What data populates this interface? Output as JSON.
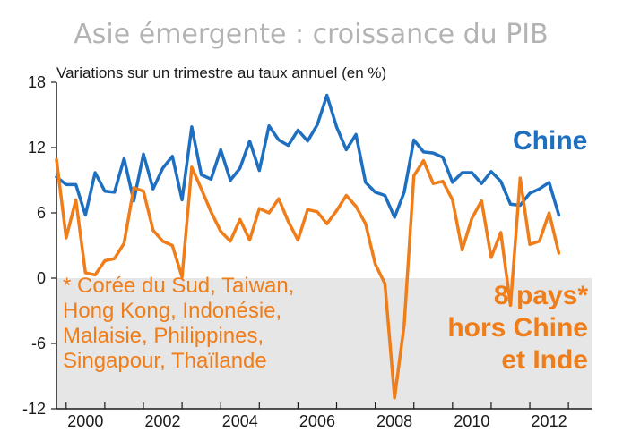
{
  "chart_data": {
    "type": "line",
    "title": "Asie émergente : croissance du PIB",
    "subtitle": "Variations sur un trimestre au taux annuel (en %)",
    "ylim": [
      -12,
      18
    ],
    "yticks": [
      18,
      12,
      6,
      0,
      -6,
      -12
    ],
    "xlim": [
      1999.75,
      2013.6
    ],
    "xticks": [
      {
        "value": 2000,
        "label": "2000"
      },
      {
        "value": 2002,
        "label": "2002"
      },
      {
        "value": 2004,
        "label": "2004"
      },
      {
        "value": 2006,
        "label": "2006"
      },
      {
        "value": 2008,
        "label": "2008"
      },
      {
        "value": 2010,
        "label": "2010"
      },
      {
        "value": 2012,
        "label": "2012"
      }
    ],
    "negative_region_shaded": true,
    "colors": {
      "china": "#1f6fc1",
      "others": "#ef7d1a",
      "shade": "#e6e6e6",
      "axis": "#1a1a1a",
      "title": "#b3b3b3"
    },
    "series": [
      {
        "name": "Chine",
        "color": "#1f6fc1",
        "x": [
          1999.75,
          2000.0,
          2000.25,
          2000.5,
          2000.75,
          2001.0,
          2001.25,
          2001.5,
          2001.75,
          2002.0,
          2002.25,
          2002.5,
          2002.75,
          2003.0,
          2003.25,
          2003.5,
          2003.75,
          2004.0,
          2004.25,
          2004.5,
          2004.75,
          2005.0,
          2005.25,
          2005.5,
          2005.75,
          2006.0,
          2006.25,
          2006.5,
          2006.75,
          2007.0,
          2007.25,
          2007.5,
          2007.75,
          2008.0,
          2008.25,
          2008.5,
          2008.75,
          2009.0,
          2009.25,
          2009.5,
          2009.75,
          2010.0,
          2010.25,
          2010.5,
          2010.75,
          2011.0,
          2011.25,
          2011.5,
          2011.75,
          2012.0,
          2012.25,
          2012.5,
          2012.75
        ],
        "values": [
          9.3,
          8.6,
          8.6,
          5.8,
          9.7,
          8.0,
          7.9,
          11.0,
          7.1,
          11.4,
          8.2,
          10.1,
          11.2,
          7.2,
          13.9,
          9.5,
          9.1,
          11.8,
          9.0,
          10.1,
          12.6,
          9.9,
          14.0,
          12.7,
          12.2,
          13.6,
          12.6,
          14.1,
          16.8,
          13.9,
          11.8,
          13.2,
          8.8,
          7.9,
          7.6,
          5.6,
          7.9,
          12.7,
          11.6,
          11.5,
          11.1,
          8.8,
          9.7,
          9.7,
          8.7,
          9.8,
          8.9,
          6.8,
          6.7,
          7.8,
          8.2,
          8.8,
          5.8
        ]
      },
      {
        "name": "8 pays* hors Chine et Inde",
        "color": "#ef7d1a",
        "x": [
          1999.75,
          2000.0,
          2000.25,
          2000.5,
          2000.75,
          2001.0,
          2001.25,
          2001.5,
          2001.75,
          2002.0,
          2002.25,
          2002.5,
          2002.75,
          2003.0,
          2003.25,
          2003.5,
          2003.75,
          2004.0,
          2004.25,
          2004.5,
          2004.75,
          2005.0,
          2005.25,
          2005.5,
          2005.75,
          2006.0,
          2006.25,
          2006.5,
          2006.75,
          2007.0,
          2007.25,
          2007.5,
          2007.75,
          2008.0,
          2008.25,
          2008.5,
          2008.75,
          2009.0,
          2009.25,
          2009.5,
          2009.75,
          2010.0,
          2010.25,
          2010.5,
          2010.75,
          2011.0,
          2011.25,
          2011.5,
          2011.75,
          2012.0,
          2012.25,
          2012.5,
          2012.75
        ],
        "values": [
          10.9,
          3.7,
          7.2,
          0.5,
          0.3,
          1.6,
          1.8,
          3.2,
          8.3,
          8.0,
          4.4,
          3.4,
          3.0,
          0.1,
          10.2,
          8.2,
          6.1,
          4.3,
          3.4,
          5.4,
          3.5,
          6.4,
          6.0,
          7.3,
          5.2,
          3.5,
          6.3,
          6.1,
          5.0,
          6.2,
          7.6,
          6.6,
          5.0,
          1.3,
          -0.5,
          -11.0,
          -4.3,
          9.4,
          10.8,
          8.7,
          8.9,
          7.2,
          2.6,
          5.5,
          7.1,
          1.9,
          4.2,
          -2.5,
          9.2,
          3.1,
          3.4,
          6.0,
          2.3
        ]
      }
    ],
    "labels": {
      "china": "Chine",
      "others_lines": [
        "8 pays*",
        "hors Chine",
        "et Inde"
      ]
    },
    "footnote_lines": [
      "* Corée du Sud, Taiwan,",
      "Hong Kong, Indonésie,",
      "Malaisie, Philippines,",
      "Singapour, Thaïlande"
    ]
  }
}
